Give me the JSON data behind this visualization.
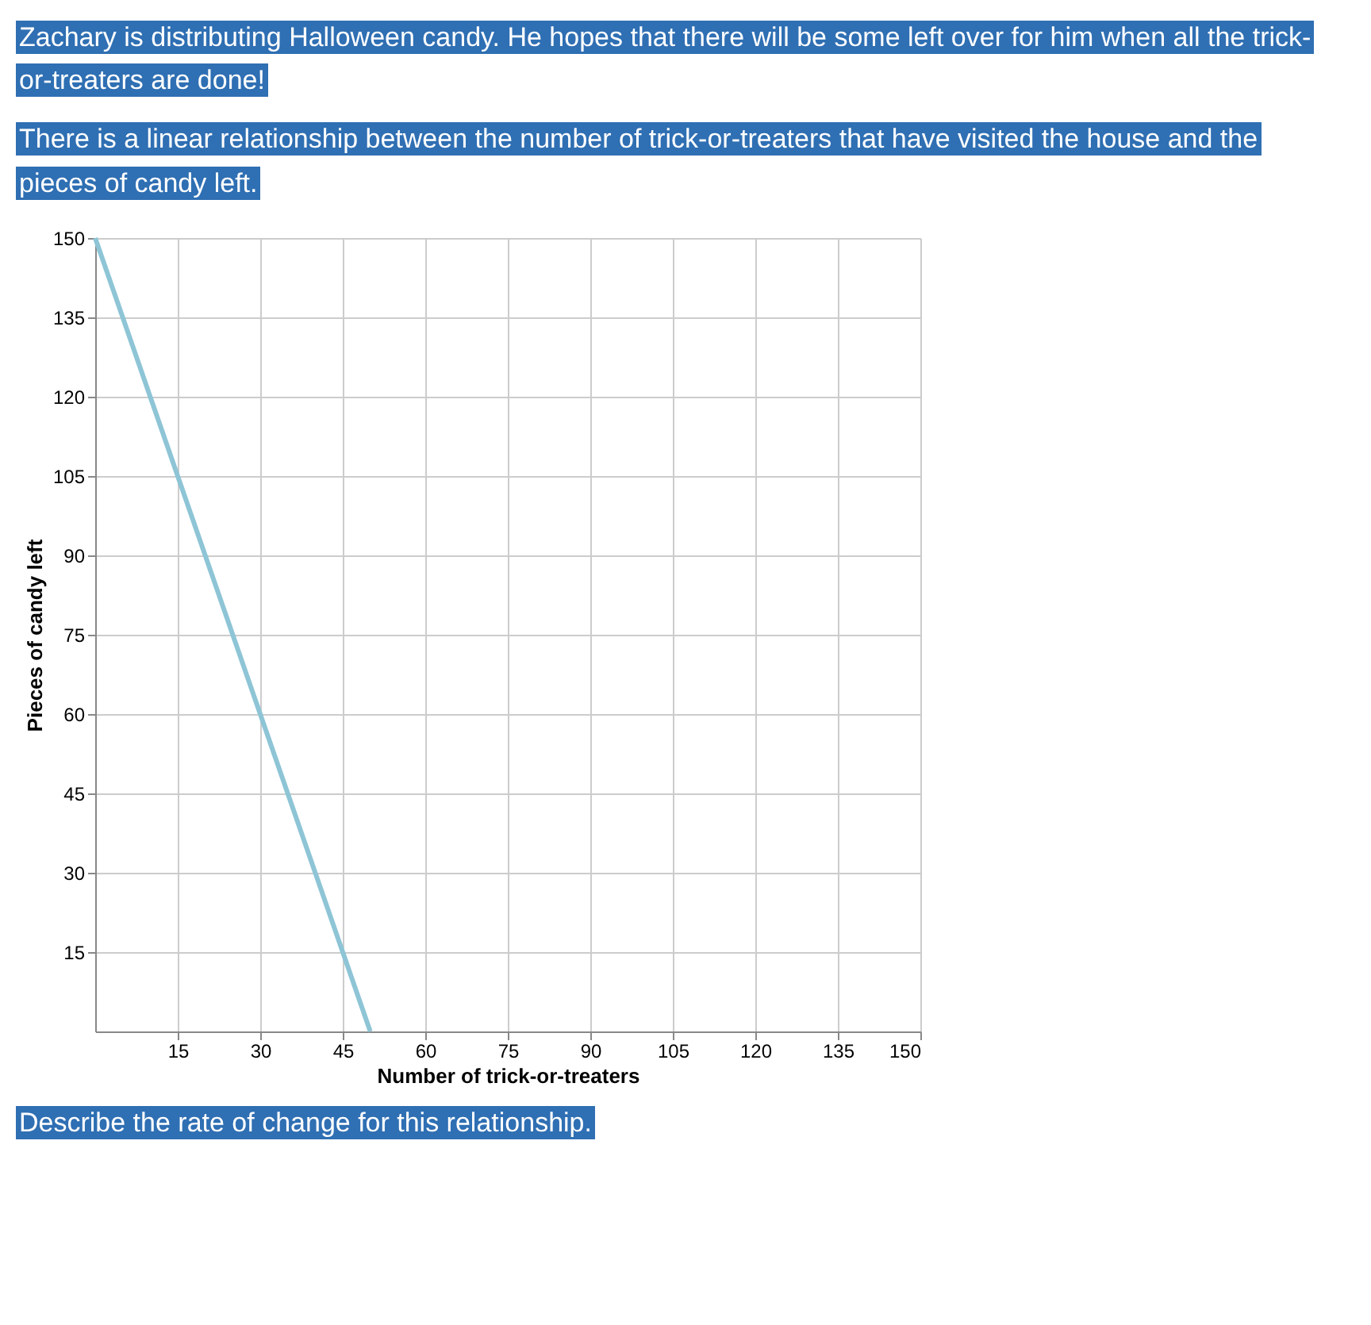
{
  "chart_data": {
    "type": "line",
    "title": "Zachary is distributing Halloween candy. He hopes that there will be some left over for him when all the trick-or-treaters are done!",
    "subtitle": "There is a linear relationship between the number of trick-or-treaters that have visited the house and the pieces of candy left.",
    "xlabel": "Number of trick-or-treaters",
    "ylabel": "Pieces of candy left",
    "annotations": [
      "Describe the rate of change for this relationship."
    ],
    "x": [
      0,
      50
    ],
    "series": [
      {
        "color": "#8ec5d6",
        "values": [
          150,
          0
        ]
      }
    ],
    "xlim": [
      0,
      150
    ],
    "ylim": [
      0,
      150
    ],
    "xticks": [
      15,
      30,
      45,
      60,
      75,
      90,
      105,
      120,
      135,
      150
    ],
    "yticks": [
      15,
      30,
      45,
      60,
      75,
      90,
      105,
      120,
      135,
      150
    ],
    "grid": true,
    "marker": "none",
    "line_style": "solid"
  }
}
